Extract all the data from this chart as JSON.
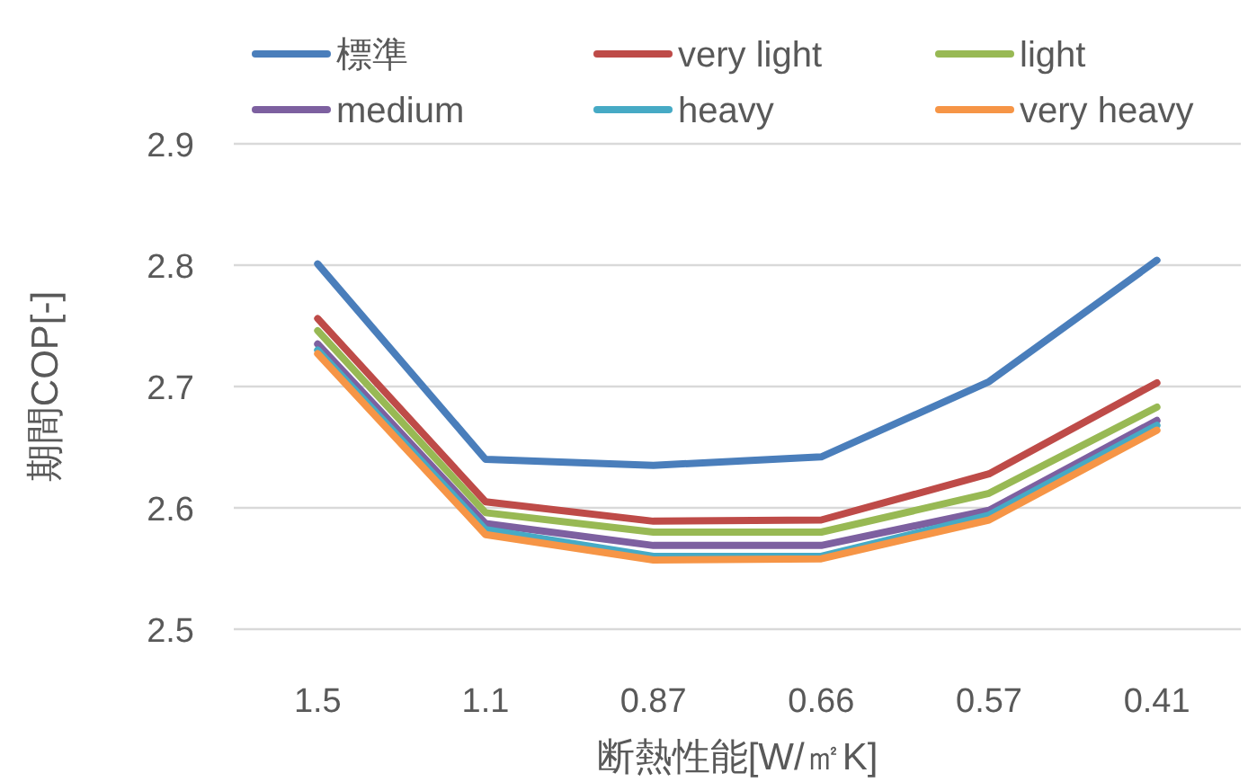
{
  "chart_data": {
    "type": "line",
    "xlabel": "断熱性能[W/㎡K]",
    "ylabel": "期間COP[-]",
    "categories": [
      "1.5",
      "1.1",
      "0.87",
      "0.66",
      "0.57",
      "0.41"
    ],
    "ylim": [
      2.5,
      2.9
    ],
    "yticks": [
      2.5,
      2.6,
      2.7,
      2.8,
      2.9
    ],
    "grid": "y",
    "legend": "top",
    "marker": "none",
    "series": [
      {
        "name": "標準",
        "color": "#4a7ebb",
        "values": [
          2.801,
          2.64,
          2.635,
          2.642,
          2.704,
          2.804
        ]
      },
      {
        "name": "very light",
        "color": "#be4b48",
        "values": [
          2.756,
          2.605,
          2.589,
          2.59,
          2.628,
          2.703
        ]
      },
      {
        "name": "light",
        "color": "#98b954",
        "values": [
          2.746,
          2.596,
          2.58,
          2.58,
          2.612,
          2.683
        ]
      },
      {
        "name": "medium",
        "color": "#7d60a0",
        "values": [
          2.735,
          2.587,
          2.569,
          2.569,
          2.598,
          2.672
        ]
      },
      {
        "name": "heavy",
        "color": "#46aac5",
        "values": [
          2.73,
          2.582,
          2.56,
          2.56,
          2.594,
          2.668
        ]
      },
      {
        "name": "very heavy",
        "color": "#f69546",
        "values": [
          2.727,
          2.578,
          2.557,
          2.558,
          2.59,
          2.664
        ]
      }
    ]
  }
}
